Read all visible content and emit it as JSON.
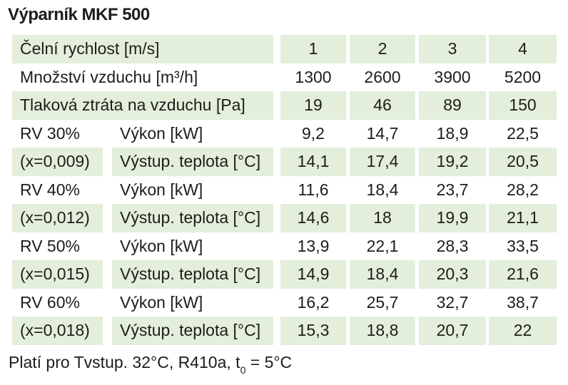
{
  "title": "Výparník MKF 500",
  "colors": {
    "row_shade": "#e3efda",
    "text": "#1d1d1b",
    "background": "#ffffff"
  },
  "table": {
    "rows": [
      {
        "label": "Čelní rychlost [m/s]",
        "values": [
          "1",
          "2",
          "3",
          "4"
        ]
      },
      {
        "label": "Množství vzduchu [m³/h]",
        "values": [
          "1300",
          "2600",
          "3900",
          "5200"
        ]
      },
      {
        "label": "Tlaková ztráta na vzduchu [Pa]",
        "values": [
          "19",
          "46",
          "89",
          "150"
        ]
      },
      {
        "label1": "RV 30%",
        "label2": "Výkon [kW]",
        "values": [
          "9,2",
          "14,7",
          "18,9",
          "22,5"
        ]
      },
      {
        "label1": "(x=0,009)",
        "label2": "Výstup. teplota [°C]",
        "values": [
          "14,1",
          "17,4",
          "19,2",
          "20,5"
        ]
      },
      {
        "label1": "RV 40%",
        "label2": "Výkon [kW]",
        "values": [
          "11,6",
          "18,4",
          "23,7",
          "28,2"
        ]
      },
      {
        "label1": "(x=0,012)",
        "label2": "Výstup. teplota [°C]",
        "values": [
          "14,6",
          "18",
          "19,9",
          "21,1"
        ]
      },
      {
        "label1": "RV 50%",
        "label2": "Výkon [kW]",
        "values": [
          "13,9",
          "22,1",
          "28,3",
          "33,5"
        ]
      },
      {
        "label1": "(x=0,015)",
        "label2": "Výstup. teplota [°C]",
        "values": [
          "14,9",
          "18,4",
          "20,3",
          "21,6"
        ]
      },
      {
        "label1": "RV 60%",
        "label2": "Výkon [kW]",
        "values": [
          "16,2",
          "25,7",
          "32,7",
          "38,7"
        ]
      },
      {
        "label1": "(x=0,018)",
        "label2": "Výstup. teplota [°C]",
        "values": [
          "15,3",
          "18,8",
          "20,7",
          "22"
        ]
      }
    ]
  },
  "footer": {
    "prefix": "Platí pro Tvstup. 32°C, R410a, t",
    "subscript": "0",
    "suffix": " = 5°C"
  }
}
